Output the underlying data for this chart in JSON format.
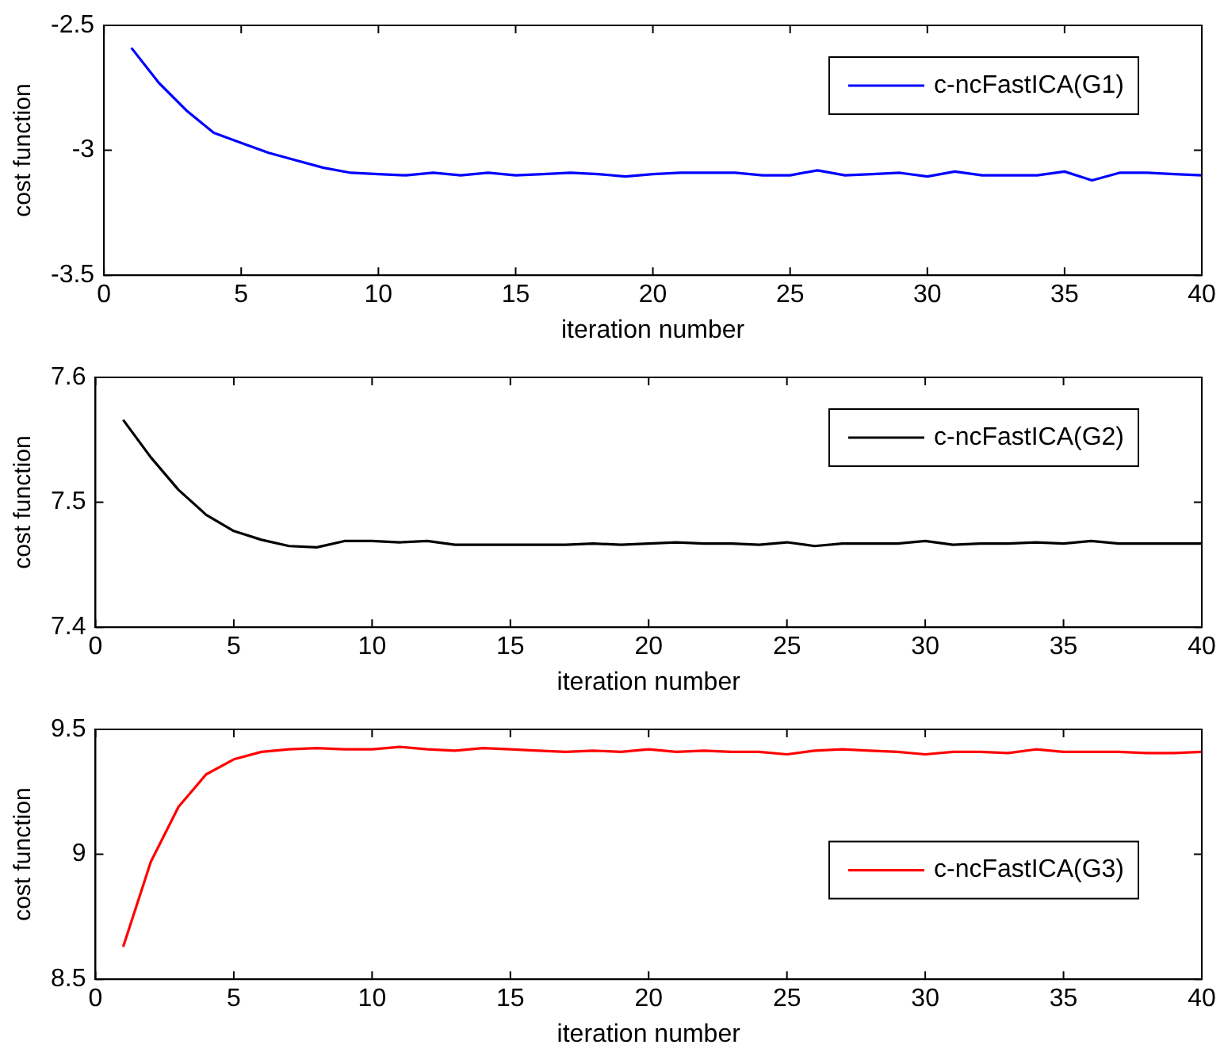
{
  "chart_data": [
    {
      "type": "line",
      "xlabel": "iteration number",
      "ylabel": "cost function",
      "xlim": [
        0,
        40
      ],
      "xticks": [
        0,
        5,
        10,
        15,
        20,
        25,
        30,
        35,
        40
      ],
      "ylim": [
        -3.5,
        -2.5
      ],
      "yticks": [
        -3.5,
        -3,
        -2.5
      ],
      "grid": false,
      "legend": "top right",
      "marker": "none",
      "line_style": "solid",
      "x": [
        1,
        2,
        3,
        4,
        5,
        6,
        7,
        8,
        9,
        10,
        11,
        12,
        13,
        14,
        15,
        16,
        17,
        18,
        19,
        20,
        21,
        22,
        23,
        24,
        25,
        26,
        27,
        28,
        29,
        30,
        31,
        32,
        33,
        34,
        35,
        36,
        37,
        38,
        39,
        40
      ],
      "series": [
        {
          "name": "c-ncFastICA(G1)",
          "color": "#0000ff",
          "values": [
            -2.59,
            -2.73,
            -2.84,
            -2.93,
            -2.97,
            -3.01,
            -3.04,
            -3.07,
            -3.09,
            -3.095,
            -3.1,
            -3.09,
            -3.1,
            -3.09,
            -3.1,
            -3.095,
            -3.09,
            -3.095,
            -3.105,
            -3.095,
            -3.09,
            -3.09,
            -3.09,
            -3.1,
            -3.1,
            -3.08,
            -3.1,
            -3.095,
            -3.09,
            -3.105,
            -3.085,
            -3.1,
            -3.1,
            -3.1,
            -3.085,
            -3.12,
            -3.09,
            -3.09,
            -3.095,
            -3.1
          ]
        }
      ]
    },
    {
      "type": "line",
      "xlabel": "iteration number",
      "ylabel": "cost function",
      "xlim": [
        0,
        40
      ],
      "xticks": [
        0,
        5,
        10,
        15,
        20,
        25,
        30,
        35,
        40
      ],
      "ylim": [
        7.4,
        7.6
      ],
      "yticks": [
        7.4,
        7.5,
        7.6
      ],
      "grid": false,
      "legend": "top right",
      "marker": "none",
      "line_style": "solid",
      "x": [
        1,
        2,
        3,
        4,
        5,
        6,
        7,
        8,
        9,
        10,
        11,
        12,
        13,
        14,
        15,
        16,
        17,
        18,
        19,
        20,
        21,
        22,
        23,
        24,
        25,
        26,
        27,
        28,
        29,
        30,
        31,
        32,
        33,
        34,
        35,
        36,
        37,
        38,
        39,
        40
      ],
      "series": [
        {
          "name": "c-ncFastICA(G2)",
          "color": "#000000",
          "values": [
            7.566,
            7.536,
            7.51,
            7.49,
            7.477,
            7.47,
            7.465,
            7.464,
            7.469,
            7.469,
            7.468,
            7.469,
            7.466,
            7.466,
            7.466,
            7.466,
            7.466,
            7.467,
            7.466,
            7.467,
            7.468,
            7.467,
            7.467,
            7.466,
            7.468,
            7.465,
            7.467,
            7.467,
            7.467,
            7.469,
            7.466,
            7.467,
            7.467,
            7.468,
            7.467,
            7.469,
            7.467,
            7.467,
            7.467,
            7.467
          ]
        }
      ]
    },
    {
      "type": "line",
      "xlabel": "iteration number",
      "ylabel": "cost function",
      "xlim": [
        0,
        40
      ],
      "xticks": [
        0,
        5,
        10,
        15,
        20,
        25,
        30,
        35,
        40
      ],
      "ylim": [
        8.5,
        9.5
      ],
      "yticks": [
        8.5,
        9,
        9.5
      ],
      "grid": false,
      "legend": "right",
      "marker": "none",
      "line_style": "solid",
      "x": [
        1,
        2,
        3,
        4,
        5,
        6,
        7,
        8,
        9,
        10,
        11,
        12,
        13,
        14,
        15,
        16,
        17,
        18,
        19,
        20,
        21,
        22,
        23,
        24,
        25,
        26,
        27,
        28,
        29,
        30,
        31,
        32,
        33,
        34,
        35,
        36,
        37,
        38,
        39,
        40
      ],
      "series": [
        {
          "name": "c-ncFastICA(G3)",
          "color": "#ff0000",
          "values": [
            8.63,
            8.97,
            9.19,
            9.32,
            9.38,
            9.41,
            9.42,
            9.425,
            9.42,
            9.42,
            9.43,
            9.42,
            9.415,
            9.425,
            9.42,
            9.415,
            9.41,
            9.415,
            9.41,
            9.42,
            9.41,
            9.415,
            9.41,
            9.41,
            9.4,
            9.415,
            9.42,
            9.415,
            9.41,
            9.4,
            9.41,
            9.41,
            9.405,
            9.42,
            9.41,
            9.41,
            9.41,
            9.405,
            9.405,
            9.41
          ]
        }
      ]
    }
  ]
}
